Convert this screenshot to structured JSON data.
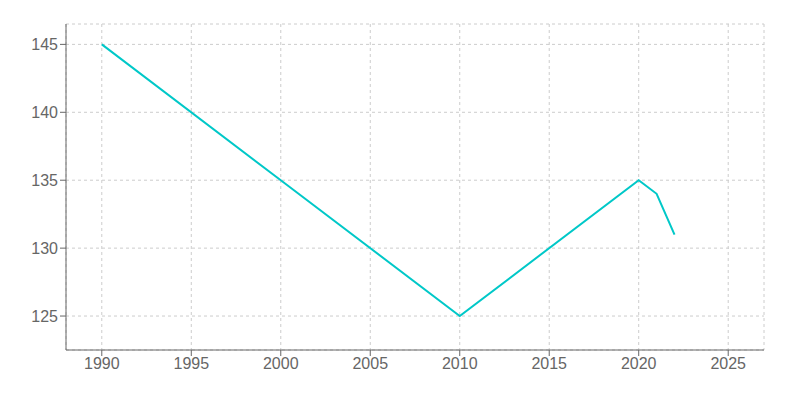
{
  "chart_data": {
    "type": "line",
    "x": [
      1990,
      2000,
      2010,
      2020,
      2021,
      2022
    ],
    "values": [
      145,
      135,
      125,
      135,
      134,
      131
    ],
    "color": "#00C8C8",
    "xlim": [
      1988,
      2027
    ],
    "ylim": [
      122.5,
      146.5
    ],
    "xticks": [
      1990,
      1995,
      2000,
      2005,
      2010,
      2015,
      2020,
      2025
    ],
    "yticks": [
      125,
      130,
      135,
      140,
      145
    ],
    "grid": true
  }
}
